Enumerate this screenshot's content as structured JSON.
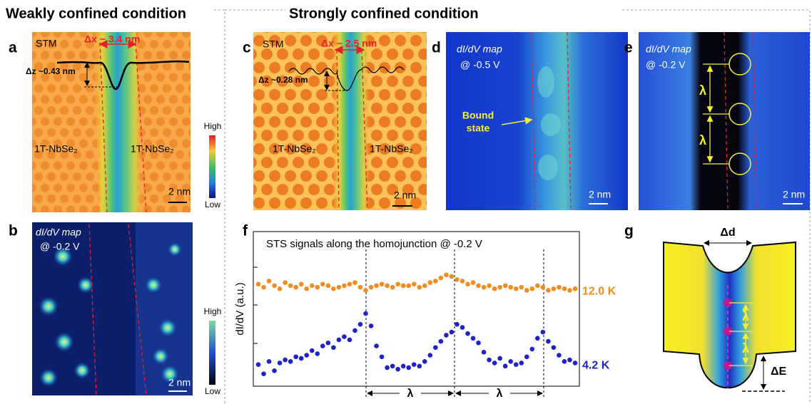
{
  "headers": {
    "weak": "Weakly confined condition",
    "strong": "Strongly confined condition"
  },
  "panels": {
    "a": {
      "label": "a",
      "mode": "STM",
      "dx": "Δx ~ 3.4 nm",
      "dz": "Δz ~0.43 nm",
      "left": "1T-NbSe₂",
      "right": "1T-NbSe₂",
      "scale": "2 nm",
      "high": "High",
      "low": "Low"
    },
    "b": {
      "label": "b",
      "mode": "dI/dV map",
      "bias": "@ -0.2 V",
      "scale": "2 nm",
      "high": "High",
      "low": "Low"
    },
    "c": {
      "label": "c",
      "mode": "STM",
      "dx": "Δx ~ 2.5 nm",
      "dz": "Δz ~0.28 nm",
      "left": "1T-NbSe₂",
      "right": "1T-NbSe₂",
      "scale": "2 nm"
    },
    "d": {
      "label": "d",
      "mode": "dI/dV map",
      "bias": "@ -0.5 V",
      "note": [
        "Bound",
        "state"
      ],
      "scale": "2 nm"
    },
    "e": {
      "label": "e",
      "mode": "dI/dV map",
      "bias": "@ -0.2 V",
      "lambda": [
        "λ",
        "λ"
      ],
      "scale": "2 nm"
    },
    "f": {
      "label": "f"
    },
    "g": {
      "label": "g",
      "dd": "Δd",
      "lambda": [
        "λ",
        "λ"
      ],
      "de": "ΔE"
    }
  },
  "chart_data": {
    "type": "scatter",
    "title": "STS signals along the homojunction @ -0.2 V",
    "y_label": "dI/dV (a.u.)",
    "ylim": [
      0,
      10
    ],
    "series": [
      {
        "name": "12.0 K",
        "color": "#f28c1e",
        "values": [
          6.6,
          6.4,
          6.8,
          6.5,
          6.3,
          6.7,
          6.5,
          6.4,
          6.6,
          6.3,
          6.5,
          6.4,
          6.6,
          6.5,
          6.3,
          6.4,
          6.5,
          6.6,
          6.7,
          6.4,
          6.2,
          6.4,
          6.5,
          6.6,
          6.5,
          6.4,
          6.6,
          6.5,
          6.5,
          6.6,
          6.4,
          6.5,
          6.7,
          6.8,
          7.0,
          7.2,
          7.1,
          6.9,
          6.8,
          6.6,
          6.7,
          6.5,
          6.4,
          6.5,
          6.3,
          6.4,
          6.5,
          6.4,
          6.3,
          6.4,
          6.2,
          6.3,
          6.5,
          6.4,
          6.2,
          6.3,
          6.4,
          6.3,
          6.2,
          6.3
        ]
      },
      {
        "name": "4.2 K",
        "color": "#1f22c8",
        "values": [
          1.4,
          0.8,
          1.6,
          1.0,
          1.5,
          1.7,
          1.6,
          1.9,
          1.8,
          2.0,
          2.3,
          2.1,
          2.6,
          2.8,
          2.5,
          3.0,
          3.2,
          3.0,
          3.6,
          4.0,
          4.7,
          3.9,
          2.6,
          1.9,
          1.2,
          1.3,
          1.1,
          1.3,
          1.2,
          1.4,
          1.3,
          1.6,
          2.0,
          2.5,
          2.9,
          3.3,
          3.5,
          4.0,
          3.8,
          3.4,
          3.1,
          2.8,
          2.2,
          1.7,
          1.5,
          1.8,
          1.3,
          1.6,
          1.4,
          1.5,
          1.9,
          2.4,
          3.1,
          3.5,
          2.9,
          2.5,
          2.0,
          1.6,
          1.7,
          1.5
        ]
      }
    ],
    "annotations": [
      "λ",
      "λ"
    ]
  }
}
